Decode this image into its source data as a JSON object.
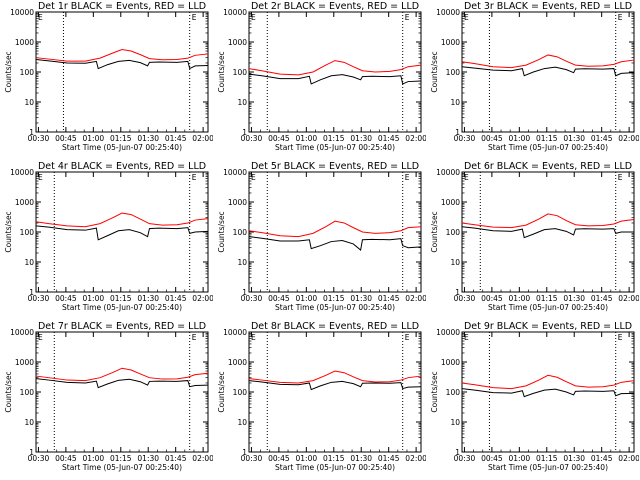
{
  "page": {
    "xlabel": "Start Time (05-Jun-07 00:25:40)",
    "ylabel": "Counts/sec",
    "x_ticks": [
      "00:30",
      "00:45",
      "01:00",
      "01:15",
      "01:30",
      "01:45",
      "02:00"
    ],
    "y_ticks": [
      "1",
      "10",
      "100",
      "1000",
      "10000"
    ],
    "corner_left": "E",
    "corner_right": "E",
    "colors": {
      "events": "#000000",
      "lld": "#ff0000",
      "axes": "#000000"
    }
  },
  "chart_data": [
    {
      "type": "line",
      "title": "Det 1r BLACK = Events, RED = LLD",
      "x_unit": "minutes after 00:25:40",
      "xlim": [
        3,
        97
      ],
      "ylim": [
        1,
        10000
      ],
      "y_scale": "log",
      "vlines": [
        18,
        87
      ],
      "series": [
        {
          "name": "Events",
          "color": "#000000",
          "x": [
            3,
            10,
            20,
            30,
            36,
            37,
            42,
            48,
            54,
            60,
            64,
            65,
            70,
            80,
            86,
            87,
            90,
            97
          ],
          "y": [
            260,
            235,
            200,
            195,
            225,
            130,
            175,
            225,
            245,
            205,
            160,
            210,
            215,
            210,
            225,
            130,
            160,
            165
          ]
        },
        {
          "name": "LLD",
          "color": "#ff0000",
          "x": [
            3,
            10,
            20,
            30,
            38,
            45,
            50,
            55,
            60,
            65,
            72,
            80,
            86,
            90,
            97
          ],
          "y": [
            300,
            270,
            230,
            230,
            290,
            430,
            560,
            500,
            380,
            280,
            255,
            260,
            290,
            360,
            400
          ]
        }
      ]
    },
    {
      "type": "line",
      "title": "Det 2r BLACK = Events, RED = LLD",
      "x_unit": "minutes after 00:25:40",
      "xlim": [
        3,
        97
      ],
      "ylim": [
        1,
        10000
      ],
      "y_scale": "log",
      "vlines": [
        13,
        87
      ],
      "series": [
        {
          "name": "Events",
          "color": "#000000",
          "x": [
            3,
            10,
            20,
            30,
            36,
            37,
            42,
            48,
            54,
            60,
            64,
            65,
            70,
            80,
            86,
            87,
            90,
            97
          ],
          "y": [
            85,
            75,
            60,
            60,
            72,
            40,
            55,
            75,
            82,
            68,
            55,
            70,
            72,
            70,
            75,
            40,
            48,
            50
          ]
        },
        {
          "name": "LLD",
          "color": "#ff0000",
          "x": [
            3,
            10,
            20,
            30,
            38,
            45,
            50,
            55,
            60,
            65,
            72,
            80,
            86,
            90,
            97
          ],
          "y": [
            130,
            110,
            85,
            80,
            100,
            170,
            240,
            210,
            150,
            110,
            100,
            105,
            120,
            150,
            170
          ]
        }
      ]
    },
    {
      "type": "line",
      "title": "Det 3r BLACK = Events, RED = LLD",
      "x_unit": "minutes after 00:25:40",
      "xlim": [
        3,
        97
      ],
      "ylim": [
        1,
        10000
      ],
      "y_scale": "log",
      "vlines": [
        18,
        87
      ],
      "series": [
        {
          "name": "Events",
          "color": "#000000",
          "x": [
            3,
            10,
            20,
            30,
            36,
            37,
            42,
            48,
            54,
            60,
            64,
            65,
            70,
            80,
            86,
            87,
            90,
            97
          ],
          "y": [
            150,
            135,
            115,
            110,
            130,
            75,
            100,
            130,
            145,
            120,
            95,
            125,
            128,
            125,
            130,
            75,
            90,
            95
          ]
        },
        {
          "name": "LLD",
          "color": "#ff0000",
          "x": [
            3,
            10,
            20,
            30,
            38,
            45,
            50,
            55,
            60,
            65,
            72,
            80,
            86,
            90,
            97
          ],
          "y": [
            220,
            190,
            150,
            140,
            170,
            260,
            370,
            320,
            230,
            170,
            155,
            160,
            180,
            220,
            250
          ]
        }
      ]
    },
    {
      "type": "line",
      "title": "Det 4r BLACK = Events, RED = LLD",
      "x_unit": "minutes after 00:25:40",
      "xlim": [
        3,
        97
      ],
      "ylim": [
        1,
        10000
      ],
      "y_scale": "log",
      "vlines": [
        13,
        87
      ],
      "series": [
        {
          "name": "Events",
          "color": "#000000",
          "x": [
            3,
            10,
            20,
            30,
            36,
            37,
            42,
            48,
            54,
            60,
            64,
            65,
            70,
            80,
            86,
            87,
            90,
            97
          ],
          "y": [
            160,
            145,
            120,
            115,
            135,
            55,
            75,
            110,
            120,
            95,
            70,
            130,
            135,
            130,
            140,
            90,
            100,
            105
          ]
        },
        {
          "name": "LLD",
          "color": "#ff0000",
          "x": [
            3,
            10,
            20,
            30,
            38,
            45,
            50,
            55,
            60,
            65,
            72,
            80,
            86,
            90,
            97
          ],
          "y": [
            220,
            190,
            160,
            150,
            190,
            300,
            430,
            380,
            270,
            190,
            170,
            175,
            200,
            250,
            280
          ]
        }
      ]
    },
    {
      "type": "line",
      "title": "Det 5r BLACK = Events, RED = LLD",
      "x_unit": "minutes after 00:25:40",
      "xlim": [
        3,
        97
      ],
      "ylim": [
        1,
        10000
      ],
      "y_scale": "log",
      "vlines": [
        13,
        87
      ],
      "series": [
        {
          "name": "Events",
          "color": "#000000",
          "x": [
            3,
            10,
            20,
            30,
            36,
            37,
            42,
            48,
            54,
            60,
            64,
            65,
            70,
            80,
            86,
            87,
            90,
            97
          ],
          "y": [
            70,
            62,
            50,
            50,
            55,
            28,
            35,
            48,
            52,
            40,
            25,
            55,
            57,
            55,
            60,
            35,
            30,
            32
          ]
        },
        {
          "name": "LLD",
          "color": "#ff0000",
          "x": [
            3,
            10,
            20,
            30,
            38,
            45,
            50,
            55,
            60,
            65,
            72,
            80,
            86,
            90,
            97
          ],
          "y": [
            110,
            95,
            75,
            70,
            90,
            150,
            230,
            200,
            140,
            100,
            90,
            95,
            110,
            140,
            150
          ]
        }
      ]
    },
    {
      "type": "line",
      "title": "Det 6r BLACK = Events, RED = LLD",
      "x_unit": "minutes after 00:25:40",
      "xlim": [
        3,
        97
      ],
      "ylim": [
        1,
        10000
      ],
      "y_scale": "log",
      "vlines": [
        13,
        87
      ],
      "series": [
        {
          "name": "Events",
          "color": "#000000",
          "x": [
            3,
            10,
            20,
            30,
            36,
            37,
            42,
            48,
            54,
            60,
            64,
            65,
            70,
            80,
            86,
            87,
            90,
            97
          ],
          "y": [
            150,
            135,
            110,
            105,
            125,
            65,
            85,
            120,
            130,
            105,
            80,
            125,
            128,
            125,
            130,
            90,
            100,
            100
          ]
        },
        {
          "name": "LLD",
          "color": "#ff0000",
          "x": [
            3,
            10,
            20,
            30,
            38,
            45,
            50,
            55,
            60,
            65,
            72,
            80,
            86,
            90,
            97
          ],
          "y": [
            200,
            175,
            145,
            140,
            170,
            270,
            400,
            350,
            240,
            175,
            160,
            165,
            185,
            230,
            260
          ]
        }
      ]
    },
    {
      "type": "line",
      "title": "Det 7r BLACK = Events, RED = LLD",
      "x_unit": "minutes after 00:25:40",
      "xlim": [
        3,
        97
      ],
      "ylim": [
        1,
        10000
      ],
      "y_scale": "log",
      "vlines": [
        13,
        87
      ],
      "series": [
        {
          "name": "Events",
          "color": "#000000",
          "x": [
            3,
            10,
            20,
            30,
            36,
            37,
            42,
            48,
            54,
            60,
            64,
            65,
            70,
            80,
            86,
            87,
            90,
            97
          ],
          "y": [
            280,
            250,
            210,
            200,
            230,
            140,
            185,
            245,
            265,
            220,
            170,
            225,
            230,
            225,
            240,
            150,
            165,
            170
          ]
        },
        {
          "name": "LLD",
          "color": "#ff0000",
          "x": [
            3,
            10,
            20,
            30,
            38,
            45,
            50,
            55,
            60,
            65,
            72,
            80,
            86,
            90,
            97
          ],
          "y": [
            340,
            300,
            250,
            240,
            300,
            450,
            620,
            540,
            400,
            300,
            270,
            275,
            310,
            380,
            420
          ]
        }
      ]
    },
    {
      "type": "line",
      "title": "Det 8r BLACK = Events, RED = LLD",
      "x_unit": "minutes after 00:25:40",
      "xlim": [
        3,
        97
      ],
      "ylim": [
        1,
        10000
      ],
      "y_scale": "log",
      "vlines": [
        13,
        87
      ],
      "series": [
        {
          "name": "Events",
          "color": "#000000",
          "x": [
            3,
            10,
            20,
            30,
            36,
            37,
            42,
            48,
            54,
            60,
            64,
            65,
            70,
            80,
            86,
            87,
            90,
            97
          ],
          "y": [
            240,
            215,
            180,
            175,
            200,
            120,
            160,
            210,
            225,
            190,
            150,
            195,
            200,
            195,
            205,
            130,
            145,
            150
          ]
        },
        {
          "name": "LLD",
          "color": "#ff0000",
          "x": [
            3,
            10,
            20,
            30,
            38,
            45,
            50,
            55,
            60,
            65,
            72,
            80,
            86,
            90,
            97
          ],
          "y": [
            280,
            250,
            210,
            200,
            240,
            360,
            500,
            440,
            320,
            240,
            215,
            220,
            250,
            300,
            340
          ]
        }
      ]
    },
    {
      "type": "line",
      "title": "Det 9r BLACK = Events, RED = LLD",
      "x_unit": "minutes after 00:25:40",
      "xlim": [
        3,
        97
      ],
      "ylim": [
        1,
        10000
      ],
      "y_scale": "log",
      "vlines": [
        18,
        87
      ],
      "series": [
        {
          "name": "Events",
          "color": "#000000",
          "x": [
            3,
            10,
            20,
            30,
            36,
            37,
            42,
            48,
            54,
            60,
            64,
            65,
            70,
            80,
            86,
            87,
            90,
            97
          ],
          "y": [
            130,
            115,
            95,
            92,
            110,
            70,
            90,
            115,
            125,
            100,
            80,
            105,
            108,
            105,
            110,
            75,
            88,
            90
          ]
        },
        {
          "name": "LLD",
          "color": "#ff0000",
          "x": [
            3,
            10,
            20,
            30,
            38,
            45,
            50,
            55,
            60,
            65,
            72,
            80,
            86,
            90,
            97
          ],
          "y": [
            200,
            175,
            140,
            130,
            160,
            250,
            360,
            310,
            220,
            160,
            145,
            150,
            170,
            210,
            240
          ]
        }
      ]
    }
  ]
}
